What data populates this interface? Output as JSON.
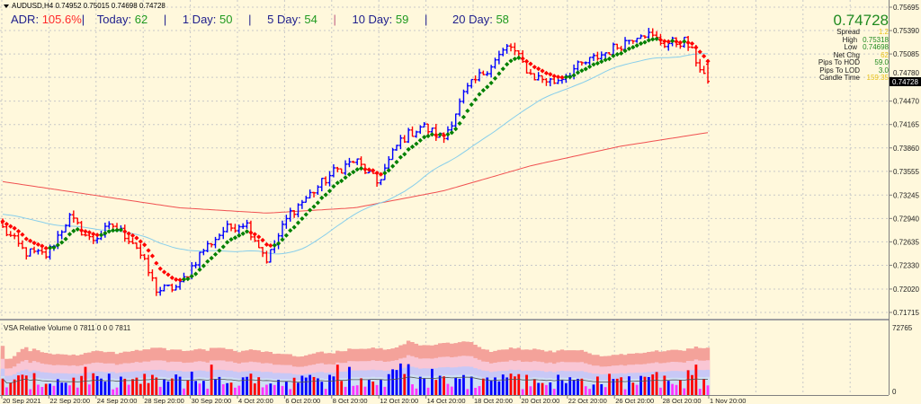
{
  "header": {
    "symbol_timeframe": "AUDUSD,H4",
    "open": "0.74952",
    "high": "0.75015",
    "low": "0.74698",
    "close": "0.74728"
  },
  "adr_panel": {
    "adr_label": "ADR:",
    "adr_value": "105.6%",
    "today_label": "Today:",
    "today_value": "62",
    "day1_label": "1 Day:",
    "day1_value": "50",
    "day5_label": "5 Day:",
    "day5_value": "54",
    "day10_label": "10 Day:",
    "day10_value": "59",
    "day20_label": "20 Day:",
    "day20_value": "58",
    "separator": "|"
  },
  "info_panel": {
    "price": "0.74728",
    "rows": [
      {
        "label": "Spread",
        "value": "1.2",
        "color": "#e8c21a"
      },
      {
        "label": "High",
        "value": "0.75318",
        "color": "#1f8a1f"
      },
      {
        "label": "Low",
        "value": "0.74698",
        "color": "#1f8a1f"
      },
      {
        "label": "Net Chg",
        "value": "62",
        "color": "#e8c21a"
      },
      {
        "label": "Pips To HOD",
        "value": "59.0",
        "color": "#1f8a1f"
      },
      {
        "label": "Pips To LOD",
        "value": "3.0",
        "color": "#1f8a1f"
      },
      {
        "label": "Candle Time",
        "value": "159:35",
        "color": "#e8c21a"
      }
    ]
  },
  "volume_panel": {
    "title": "VSA Relative Volume 0 7811 0 0 0 7811",
    "axis_max": "72765",
    "axis_min": "0"
  },
  "colors": {
    "background": "#fff8dc",
    "up_bar": "#0000ff",
    "down_bar": "#ff0000",
    "ma_fast_up": "#008000",
    "ma_fast_down": "#ff0000",
    "ma_mid": "#87ceeb",
    "ma_slow": "#f05050",
    "current_price_box": "#000000"
  },
  "chart_data": {
    "type": "ohlc",
    "symbol": "AUDUSD",
    "timeframe": "H4",
    "current_price": 0.74728,
    "last_bar": {
      "open": 0.74952,
      "high": 0.75015,
      "low": 0.74698,
      "close": 0.74728
    },
    "close_samples": [
      0.7281,
      0.725,
      0.7246,
      0.7296,
      0.7265,
      0.7285,
      0.7262,
      0.72,
      0.7205,
      0.725,
      0.7278,
      0.729,
      0.724,
      0.73,
      0.7327,
      0.7354,
      0.737,
      0.734,
      0.7395,
      0.7415,
      0.7398,
      0.746,
      0.749,
      0.752,
      0.748,
      0.7472,
      0.749,
      0.7505,
      0.752,
      0.7538,
      0.7522,
      0.7525,
      0.74728
    ],
    "slow_ma_samples": [
      0.7342,
      0.7325,
      0.7308,
      0.7301,
      0.7308,
      0.733,
      0.7363,
      0.7388,
      0.7406
    ],
    "ylim": [
      0.71715,
      0.75695
    ],
    "y_ticks": [
      "0.75695",
      "0.75390",
      "0.75085",
      "0.74780",
      "0.74470",
      "0.74165",
      "0.73860",
      "0.73555",
      "0.73245",
      "0.72940",
      "0.72635",
      "0.72330",
      "0.72020",
      "0.71715"
    ],
    "x_ticks": [
      "20 Sep 2021",
      "22 Sep 20:00",
      "24 Sep 20:00",
      "28 Sep 20:00",
      "30 Sep 20:00",
      "4 Oct 20:00",
      "6 Oct 20:00",
      "8 Oct 20:00",
      "12 Oct 20:00",
      "14 Oct 20:00",
      "18 Oct 20:00",
      "20 Oct 20:00",
      "22 Oct 20:00",
      "26 Oct 20:00",
      "28 Oct 20:00",
      "1 Nov 20:00"
    ],
    "grid": true
  }
}
